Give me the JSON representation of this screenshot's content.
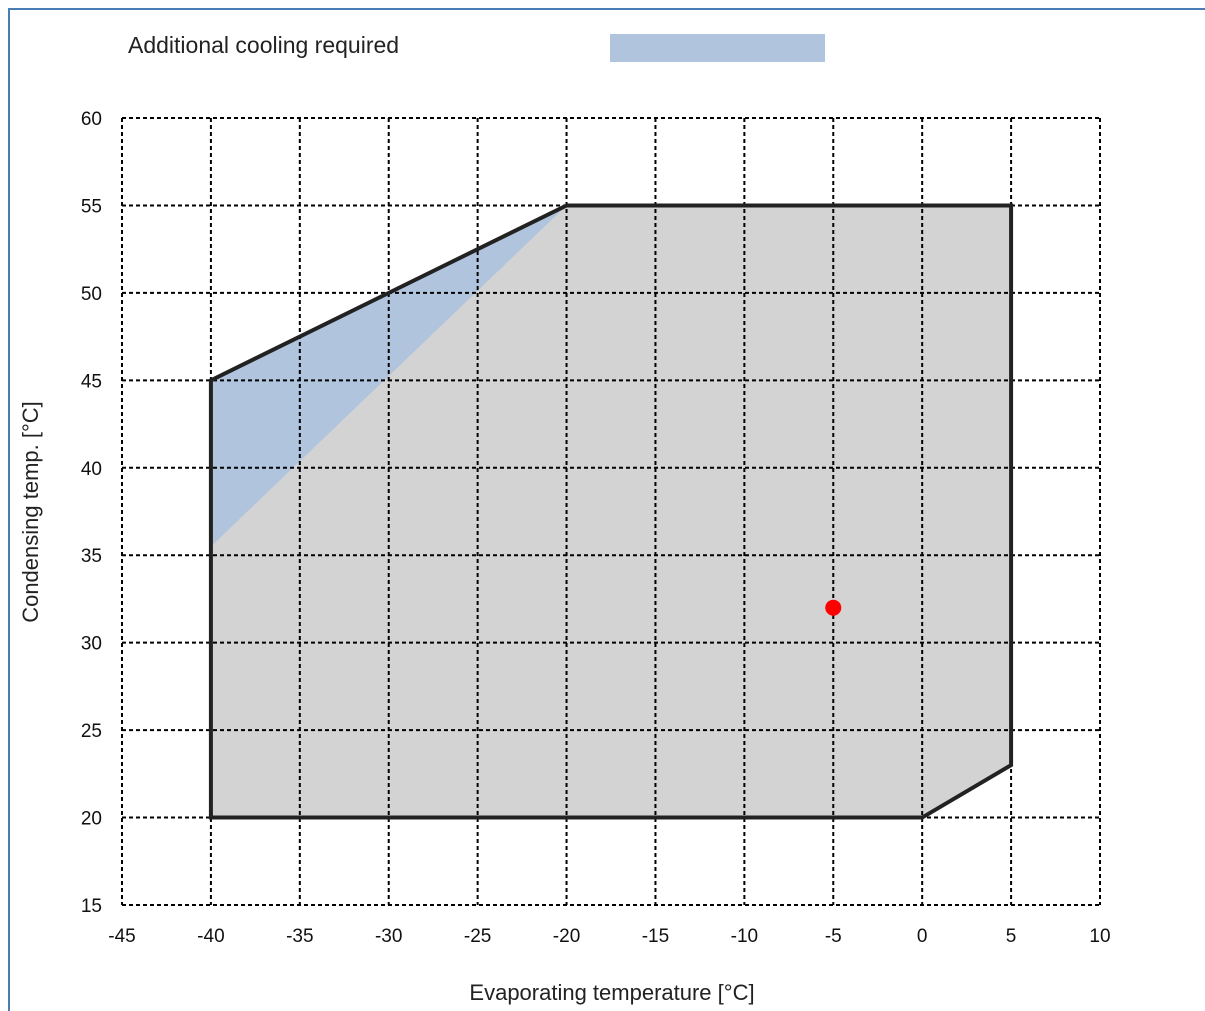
{
  "chart_data": {
    "type": "area",
    "xlabel": "Evaporating temperature [°C]",
    "ylabel": "Condensing temp. [°C]",
    "xlim": [
      -45,
      10
    ],
    "ylim": [
      15,
      60
    ],
    "x_ticks": [
      -45,
      -40,
      -35,
      -30,
      -25,
      -20,
      -15,
      -10,
      -5,
      0,
      5,
      10
    ],
    "y_ticks": [
      15,
      20,
      25,
      30,
      35,
      40,
      45,
      50,
      55,
      60
    ],
    "grid": true,
    "legend": {
      "position": "top",
      "entries": [
        {
          "label": "Additional cooling required",
          "color": "#b0c4de"
        }
      ]
    },
    "envelope": {
      "fill": "#d3d3d3",
      "stroke": "#222222",
      "points": [
        [
          -40,
          20
        ],
        [
          -40,
          45
        ],
        [
          -20,
          55
        ],
        [
          5,
          55
        ],
        [
          5,
          23
        ],
        [
          0,
          20
        ]
      ]
    },
    "additional_cooling_region": {
      "fill": "#b0c4de",
      "points": [
        [
          -40,
          35.5
        ],
        [
          -40,
          45
        ],
        [
          -20,
          55
        ]
      ]
    },
    "operating_point": {
      "x": -5,
      "y": 32,
      "color": "#ff0000"
    }
  }
}
